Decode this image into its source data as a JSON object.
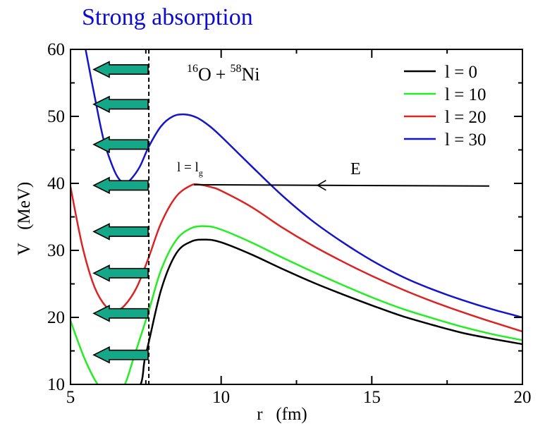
{
  "headline": "Strong absorption",
  "colors": {
    "headline": "#0b0bd8",
    "l0": "#000000",
    "l10": "#22ee22",
    "l20": "#dd2222",
    "l30": "#1414cc",
    "arrow_fill": "#14a888",
    "arrow_edge": "#000000"
  },
  "chart_data": {
    "type": "line",
    "xlabel": "r   (fm)",
    "ylabel": "V   (MeV)",
    "xlim": [
      5,
      20
    ],
    "ylim": [
      10,
      60
    ],
    "xticks": [
      5,
      10,
      15,
      20
    ],
    "yticks": [
      10,
      20,
      30,
      40,
      50,
      60
    ],
    "grid": false,
    "legend_position": "top-right",
    "reaction_label": {
      "a_mass": "16",
      "a": "O",
      "plus": "+",
      "b_mass": "58",
      "b": "Ni"
    },
    "series": [
      {
        "name": "l = 0",
        "color_key": "l0",
        "x": [
          5.0,
          5.1,
          7.1,
          7.5,
          8.0,
          8.5,
          9.0,
          9.5,
          10.0,
          11.0,
          12.0,
          13.0,
          14.0,
          15.0,
          16.0,
          17.0,
          18.0,
          19.0,
          20.0
        ],
        "y": [
          10.3,
          9.5,
          9.0,
          14.5,
          24.0,
          29.5,
          31.3,
          31.6,
          31.2,
          29.4,
          27.3,
          25.3,
          23.5,
          21.8,
          20.2,
          18.9,
          17.7,
          16.8,
          16.0
        ]
      },
      {
        "name": "l = 10",
        "color_key": "l10",
        "x": [
          5.0,
          5.5,
          6.0,
          6.5,
          6.8,
          7.1,
          7.6,
          8.0,
          8.5,
          9.0,
          9.5,
          10.0,
          11.0,
          12.0,
          13.0,
          14.0,
          15.0,
          16.0,
          17.0,
          18.0,
          19.0,
          20.0
        ],
        "y": [
          19.5,
          13.5,
          9.5,
          9.2,
          10.0,
          14.0,
          21.0,
          27.0,
          31.5,
          33.3,
          33.6,
          33.1,
          31.2,
          29.0,
          26.9,
          24.9,
          23.0,
          21.3,
          19.9,
          18.6,
          17.5,
          16.6
        ]
      },
      {
        "name": "l = 20",
        "color_key": "l20",
        "x": [
          5.0,
          5.4,
          5.8,
          6.2,
          6.5,
          6.8,
          7.2,
          7.6,
          8.0,
          8.5,
          9.0,
          9.3,
          9.7,
          10.0,
          11.0,
          12.0,
          13.0,
          14.0,
          15.0,
          16.0,
          17.0,
          18.0,
          19.0,
          20.0
        ],
        "y": [
          39.5,
          30.5,
          24.5,
          21.5,
          21.0,
          21.8,
          24.5,
          29.0,
          34.0,
          38.0,
          39.7,
          39.8,
          39.4,
          38.9,
          36.5,
          33.5,
          30.8,
          28.4,
          26.2,
          24.2,
          22.4,
          20.8,
          19.3,
          17.9
        ]
      },
      {
        "name": "l = 30",
        "color_key": "l30",
        "x": [
          5.5,
          5.8,
          6.1,
          6.4,
          6.6,
          6.8,
          7.0,
          7.3,
          7.6,
          8.0,
          8.4,
          8.8,
          9.2,
          9.6,
          10.0,
          11.0,
          12.0,
          13.0,
          14.0,
          15.0,
          16.0,
          17.0,
          18.0,
          19.0,
          20.0
        ],
        "y": [
          60.0,
          53.0,
          46.5,
          42.5,
          40.7,
          40.1,
          40.6,
          42.5,
          45.5,
          48.5,
          50.0,
          50.3,
          49.8,
          48.6,
          47.0,
          42.6,
          38.3,
          34.5,
          31.3,
          28.5,
          26.1,
          24.2,
          22.6,
          21.2,
          20.0
        ]
      }
    ],
    "energy_line": {
      "label": "E",
      "x": [
        9.1,
        18.9
      ],
      "y": [
        39.8,
        39.6
      ],
      "arrow_at_x": 13.2
    },
    "grazing_label": {
      "prefix": "l = l",
      "subscript": "g"
    },
    "cutoff_line": {
      "x": 7.6,
      "style": "dashed"
    },
    "absorption_arrows_y": [
      57.0,
      51.8,
      45.8,
      39.7,
      32.8,
      26.6,
      20.6,
      14.4
    ]
  }
}
